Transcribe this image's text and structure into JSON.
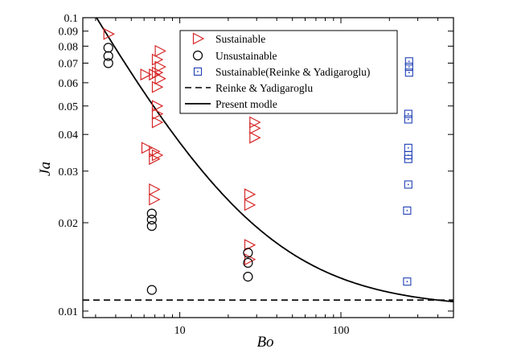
{
  "chart_data": {
    "type": "scatter",
    "xlabel": "Bo",
    "ylabel": "Ja",
    "xscale": "log",
    "yscale": "log",
    "xlim": [
      2.5,
      500
    ],
    "ylim": [
      0.0095,
      0.1
    ],
    "x_ticks": [
      10,
      100
    ],
    "y_ticks": [
      0.01,
      0.02,
      0.03,
      0.04,
      0.05,
      0.06,
      0.07,
      0.08,
      0.09,
      0.1
    ],
    "legend_position": "top-right",
    "series": [
      {
        "name": "Sustainable",
        "marker": "triangle-right",
        "color": "#d62728",
        "points": [
          {
            "x": 3.6,
            "y": 0.088
          },
          {
            "x": 6.1,
            "y": 0.064
          },
          {
            "x": 6.2,
            "y": 0.036
          },
          {
            "x": 6.9,
            "y": 0.064
          },
          {
            "x": 6.9,
            "y": 0.035
          },
          {
            "x": 6.9,
            "y": 0.033
          },
          {
            "x": 6.9,
            "y": 0.026
          },
          {
            "x": 6.9,
            "y": 0.024
          },
          {
            "x": 7.2,
            "y": 0.072
          },
          {
            "x": 7.2,
            "y": 0.065
          },
          {
            "x": 7.2,
            "y": 0.058
          },
          {
            "x": 7.2,
            "y": 0.05
          },
          {
            "x": 7.2,
            "y": 0.047
          },
          {
            "x": 7.2,
            "y": 0.044
          },
          {
            "x": 7.2,
            "y": 0.034
          },
          {
            "x": 7.5,
            "y": 0.077
          },
          {
            "x": 7.5,
            "y": 0.068
          },
          {
            "x": 7.5,
            "y": 0.062
          },
          {
            "x": 27,
            "y": 0.025
          },
          {
            "x": 27,
            "y": 0.023
          },
          {
            "x": 27,
            "y": 0.0168
          },
          {
            "x": 27,
            "y": 0.015
          },
          {
            "x": 29,
            "y": 0.044
          },
          {
            "x": 29,
            "y": 0.042
          },
          {
            "x": 29,
            "y": 0.039
          }
        ]
      },
      {
        "name": "Unsustainable",
        "marker": "circle",
        "color": "#000000",
        "points": [
          {
            "x": 3.6,
            "y": 0.079
          },
          {
            "x": 3.6,
            "y": 0.074
          },
          {
            "x": 3.6,
            "y": 0.07
          },
          {
            "x": 6.7,
            "y": 0.0215
          },
          {
            "x": 6.7,
            "y": 0.0205
          },
          {
            "x": 6.7,
            "y": 0.0195
          },
          {
            "x": 6.7,
            "y": 0.0118
          },
          {
            "x": 26.5,
            "y": 0.0158
          },
          {
            "x": 26.5,
            "y": 0.0146
          },
          {
            "x": 26.5,
            "y": 0.0131
          }
        ]
      },
      {
        "name": "Sustainable(Reinke & Yadigaroglu)",
        "marker": "square",
        "color": "#1f3fb4",
        "points": [
          {
            "x": 265,
            "y": 0.071
          },
          {
            "x": 265,
            "y": 0.068
          },
          {
            "x": 265,
            "y": 0.065
          },
          {
            "x": 262,
            "y": 0.047
          },
          {
            "x": 262,
            "y": 0.045
          },
          {
            "x": 262,
            "y": 0.036
          },
          {
            "x": 262,
            "y": 0.034
          },
          {
            "x": 262,
            "y": 0.033
          },
          {
            "x": 262,
            "y": 0.027
          },
          {
            "x": 258,
            "y": 0.022
          },
          {
            "x": 258,
            "y": 0.0126
          }
        ]
      }
    ],
    "lines": [
      {
        "name": "Reinke & Yadigaroglu",
        "style": "dashed",
        "color": "#000000",
        "y_constant": 0.0109
      },
      {
        "name": "Present modle",
        "style": "solid",
        "color": "#000000",
        "model": "a + b / Bo",
        "a": 0.01022,
        "b": 0.273
      }
    ]
  }
}
